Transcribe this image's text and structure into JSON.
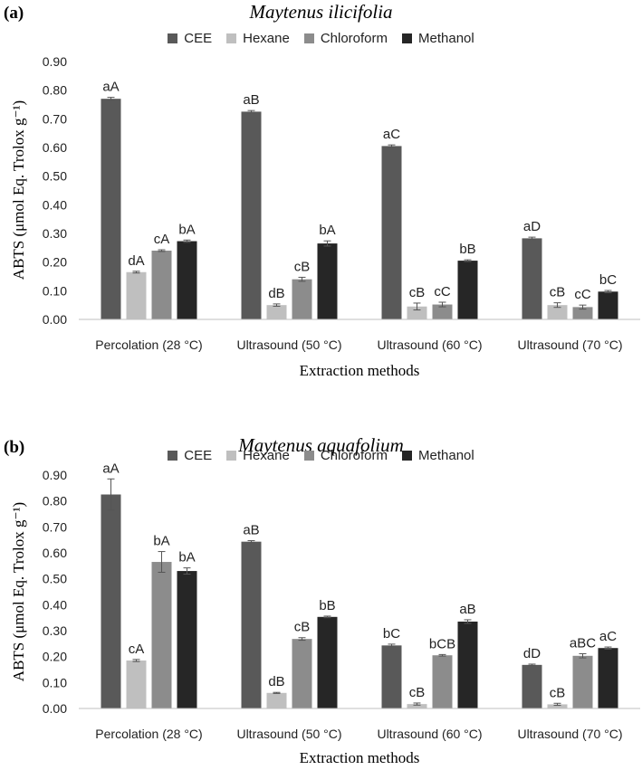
{
  "colors": {
    "CEE": "#595959",
    "Hexane": "#bfbfbf",
    "Chloroform": "#8c8c8c",
    "Methanol": "#262626"
  },
  "chart_data": [
    {
      "type": "bar",
      "panel_label": "(a)",
      "title": "Maytenus ilicifolia",
      "xlabel": "Extraction methods",
      "ylabel": "ABTS (μmol Eq. Trolox g⁻¹)",
      "ylim": [
        0,
        0.9
      ],
      "yticks": [
        "0.00",
        "0.10",
        "0.20",
        "0.30",
        "0.40",
        "0.50",
        "0.60",
        "0.70",
        "0.80",
        "0.90"
      ],
      "legend_position": "top-center",
      "grid": false,
      "categories": [
        "Percolation (28 °C)",
        "Ultrasound (50 °C)",
        "Ultrasound (60 °C)",
        "Ultrasound (70 °C)"
      ],
      "series": [
        {
          "name": "CEE",
          "values": [
            0.77,
            0.725,
            0.605,
            0.283
          ],
          "errors": [
            0.005,
            0.004,
            0.004,
            0.004
          ],
          "labels": [
            "aA",
            "aB",
            "aC",
            "aD"
          ]
        },
        {
          "name": "Hexane",
          "values": [
            0.165,
            0.05,
            0.045,
            0.05
          ],
          "errors": [
            0.003,
            0.004,
            0.012,
            0.008
          ],
          "labels": [
            "dA",
            "dB",
            "cB",
            "cB"
          ]
        },
        {
          "name": "Chloroform",
          "values": [
            0.24,
            0.14,
            0.052,
            0.043
          ],
          "errors": [
            0.003,
            0.007,
            0.008,
            0.007
          ],
          "labels": [
            "cA",
            "cB",
            "cC",
            "cC"
          ]
        },
        {
          "name": "Methanol",
          "values": [
            0.273,
            0.265,
            0.205,
            0.097
          ],
          "errors": [
            0.004,
            0.009,
            0.003,
            0.004
          ],
          "labels": [
            "bA",
            "bA",
            "bB",
            "bC"
          ]
        }
      ]
    },
    {
      "type": "bar",
      "panel_label": "(b)",
      "title": "Maytenus aquafolium",
      "xlabel": "Extraction methods",
      "ylabel": "ABTS (μmol Eq. Trolox g⁻¹)",
      "ylim": [
        0,
        0.9
      ],
      "yticks": [
        "0.00",
        "0.10",
        "0.20",
        "0.30",
        "0.40",
        "0.50",
        "0.60",
        "0.70",
        "0.80",
        "0.90"
      ],
      "legend_position": "top-center",
      "grid": false,
      "categories": [
        "Percolation (28 °C)",
        "Ultrasound (50 °C)",
        "Ultrasound (60 °C)",
        "Ultrasound (70 °C)"
      ],
      "series": [
        {
          "name": "CEE",
          "values": [
            0.825,
            0.643,
            0.243,
            0.168
          ],
          "errors": [
            0.06,
            0.004,
            0.005,
            0.003
          ],
          "labels": [
            "aA",
            "aB",
            "bC",
            "dD"
          ]
        },
        {
          "name": "Hexane",
          "values": [
            0.185,
            0.06,
            0.017,
            0.016
          ],
          "errors": [
            0.004,
            0.002,
            0.004,
            0.004
          ],
          "labels": [
            "cA",
            "dB",
            "cB",
            "cB"
          ]
        },
        {
          "name": "Chloroform",
          "values": [
            0.565,
            0.268,
            0.205,
            0.203
          ],
          "errors": [
            0.04,
            0.005,
            0.003,
            0.008
          ],
          "labels": [
            "bA",
            "cB",
            "bCB",
            "aBC"
          ]
        },
        {
          "name": "Methanol",
          "values": [
            0.53,
            0.353,
            0.335,
            0.233
          ],
          "errors": [
            0.012,
            0.003,
            0.007,
            0.004
          ],
          "labels": [
            "bA",
            "bB",
            "aB",
            "aC"
          ]
        }
      ]
    }
  ]
}
